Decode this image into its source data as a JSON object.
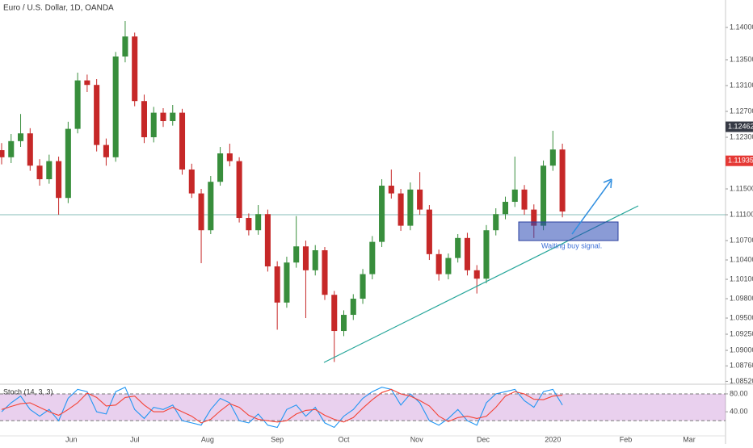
{
  "chart_data": [
    {
      "type": "candlestick",
      "title": "Euro / U.S. Dollar, 1D, OANDA",
      "x": [
        "2019-05-02",
        "2019-05-07",
        "2019-05-10",
        "2019-05-15",
        "2019-05-20",
        "2019-05-23",
        "2019-05-28",
        "2019-05-31",
        "2019-06-05",
        "2019-06-10",
        "2019-06-13",
        "2019-06-18",
        "2019-06-21",
        "2019-06-26",
        "2019-07-01",
        "2019-07-04",
        "2019-07-09",
        "2019-07-12",
        "2019-07-17",
        "2019-07-22",
        "2019-07-25",
        "2019-07-30",
        "2019-08-02",
        "2019-08-07",
        "2019-08-12",
        "2019-08-15",
        "2019-08-20",
        "2019-08-23",
        "2019-08-28",
        "2019-09-02",
        "2019-09-05",
        "2019-09-10",
        "2019-09-13",
        "2019-09-18",
        "2019-09-23",
        "2019-09-26",
        "2019-10-01",
        "2019-10-04",
        "2019-10-09",
        "2019-10-14",
        "2019-10-17",
        "2019-10-22",
        "2019-10-25",
        "2019-10-30",
        "2019-11-04",
        "2019-11-07",
        "2019-11-12",
        "2019-11-15",
        "2019-11-20",
        "2019-11-25",
        "2019-11-28",
        "2019-12-03",
        "2019-12-06",
        "2019-12-11",
        "2019-12-16",
        "2019-12-19",
        "2019-12-24",
        "2019-12-27",
        "2020-01-01",
        "2020-01-06"
      ],
      "open": [
        1.121,
        1.1199,
        1.1224,
        1.1236,
        1.1186,
        1.1165,
        1.1193,
        1.1136,
        1.1243,
        1.1318,
        1.1311,
        1.1218,
        1.1199,
        1.1355,
        1.1386,
        1.1286,
        1.123,
        1.1268,
        1.1255,
        1.1268,
        1.118,
        1.1143,
        1.1086,
        1.1161,
        1.1205,
        1.1193,
        1.1105,
        1.1086,
        1.1111,
        1.103,
        1.0974,
        1.1036,
        1.1061,
        1.1024,
        1.1055,
        1.0986,
        1.093,
        1.0955,
        1.098,
        1.1018,
        1.1068,
        1.1155,
        1.1143,
        1.1093,
        1.1149,
        1.1118,
        1.1049,
        1.1018,
        1.1043,
        1.1074,
        1.1024,
        1.1011,
        1.1086,
        1.1111,
        1.113,
        1.1149,
        1.1118,
        1.1093,
        1.1186,
        1.1211
      ],
      "high": [
        1.1221,
        1.1235,
        1.1266,
        1.1244,
        1.1196,
        1.1203,
        1.12,
        1.1254,
        1.133,
        1.1327,
        1.132,
        1.1228,
        1.1362,
        1.141,
        1.1392,
        1.1296,
        1.1277,
        1.1275,
        1.128,
        1.1274,
        1.1189,
        1.115,
        1.117,
        1.1215,
        1.122,
        1.1199,
        1.1112,
        1.1125,
        1.1118,
        1.1038,
        1.1045,
        1.1108,
        1.107,
        1.1063,
        1.106,
        1.0992,
        1.0962,
        1.0987,
        1.1026,
        1.1077,
        1.1165,
        1.118,
        1.115,
        1.116,
        1.1176,
        1.1125,
        1.1056,
        1.105,
        1.108,
        1.1082,
        1.1032,
        1.1094,
        1.112,
        1.1138,
        1.12,
        1.1156,
        1.1126,
        1.1194,
        1.124,
        1.122
      ],
      "low": [
        1.1188,
        1.119,
        1.1215,
        1.1178,
        1.1155,
        1.1158,
        1.111,
        1.1128,
        1.1236,
        1.13,
        1.1208,
        1.1186,
        1.1192,
        1.1346,
        1.1278,
        1.1221,
        1.1222,
        1.1246,
        1.1248,
        1.1172,
        1.1136,
        1.1035,
        1.108,
        1.1155,
        1.1185,
        1.1098,
        1.1078,
        1.1079,
        1.1022,
        1.0932,
        1.0966,
        1.1028,
        1.095,
        1.1016,
        1.0978,
        1.0882,
        1.0922,
        1.0947,
        1.0972,
        1.101,
        1.106,
        1.1135,
        1.1085,
        1.1086,
        1.111,
        1.104,
        1.1008,
        1.101,
        1.1036,
        1.1016,
        1.0988,
        1.1004,
        1.1078,
        1.1103,
        1.1122,
        1.111,
        1.1074,
        1.1086,
        1.1178,
        1.1106
      ],
      "close": [
        1.1199,
        1.1224,
        1.1236,
        1.1186,
        1.1165,
        1.1193,
        1.1136,
        1.1243,
        1.1318,
        1.1311,
        1.1218,
        1.1199,
        1.1355,
        1.1386,
        1.1286,
        1.123,
        1.1268,
        1.1255,
        1.1268,
        1.118,
        1.1143,
        1.1086,
        1.1161,
        1.1205,
        1.1193,
        1.1105,
        1.1086,
        1.1111,
        1.103,
        1.0974,
        1.1036,
        1.1061,
        1.1024,
        1.1055,
        1.0986,
        1.093,
        1.0955,
        1.098,
        1.1018,
        1.1068,
        1.1155,
        1.1143,
        1.1093,
        1.1149,
        1.1118,
        1.1049,
        1.1018,
        1.1043,
        1.1074,
        1.1024,
        1.1011,
        1.1086,
        1.1111,
        1.113,
        1.1149,
        1.1118,
        1.1093,
        1.1186,
        1.1211,
        1.1115
      ],
      "up_color": "#388e3c",
      "down_color": "#c62828",
      "xlim": [
        "2019-05-02",
        "2020-03-18"
      ],
      "xticks": [
        {
          "value": "2019-06-03",
          "label": "Jun"
        },
        {
          "value": "2019-07-01",
          "label": "Jul"
        },
        {
          "value": "2019-08-01",
          "label": "Aug"
        },
        {
          "value": "2019-09-02",
          "label": "Sep"
        },
        {
          "value": "2019-10-01",
          "label": "Oct"
        },
        {
          "value": "2019-11-01",
          "label": "Nov"
        },
        {
          "value": "2019-12-02",
          "label": "Dec"
        },
        {
          "value": "2020-01-01",
          "label": "2020"
        },
        {
          "value": "2020-02-03",
          "label": "Feb"
        },
        {
          "value": "2020-03-02",
          "label": "Mar"
        }
      ],
      "ylim": [
        1.08488,
        1.14425
      ],
      "yticks": [
        {
          "value": 1.14,
          "label": "1.14000"
        },
        {
          "value": 1.135,
          "label": "1.13500"
        },
        {
          "value": 1.131,
          "label": "1.13100"
        },
        {
          "value": 1.127,
          "label": "1.12700"
        },
        {
          "value": 1.123,
          "label": "1.12300"
        },
        {
          "value": 1.115,
          "label": "1.11500"
        },
        {
          "value": 1.111,
          "label": "1.11100"
        },
        {
          "value": 1.107,
          "label": "1.10700"
        },
        {
          "value": 1.104,
          "label": "1.10400"
        },
        {
          "value": 1.101,
          "label": "1.10100"
        },
        {
          "value": 1.098,
          "label": "1.09800"
        },
        {
          "value": 1.095,
          "label": "1.09500"
        },
        {
          "value": 1.0925,
          "label": "1.09250"
        },
        {
          "value": 1.09,
          "label": "1.09000"
        },
        {
          "value": 1.0876,
          "label": "1.08760"
        },
        {
          "value": 1.0852,
          "label": "1.08520"
        }
      ],
      "price_markers": [
        {
          "value": 1.12462,
          "color": "#363a45"
        },
        {
          "value": 1.11935,
          "color": "#e53935"
        }
      ],
      "annotation": "Waiting buy signal."
    },
    {
      "type": "line",
      "title": "Stoch (14, 3, 3)",
      "series": [
        {
          "color": "#2196f3",
          "values": [
            40,
            60,
            75,
            45,
            30,
            45,
            20,
            70,
            90,
            85,
            40,
            35,
            85,
            95,
            45,
            25,
            50,
            45,
            55,
            20,
            15,
            10,
            45,
            70,
            60,
            20,
            15,
            35,
            10,
            5,
            45,
            55,
            30,
            50,
            15,
            5,
            30,
            45,
            70,
            85,
            95,
            90,
            55,
            80,
            60,
            20,
            10,
            25,
            45,
            20,
            10,
            60,
            80,
            85,
            90,
            65,
            50,
            85,
            90,
            55
          ]
        },
        {
          "color": "#f44336",
          "values": [
            45,
            52,
            58,
            60,
            50,
            40,
            32,
            45,
            60,
            82,
            72,
            53,
            55,
            72,
            75,
            55,
            40,
            40,
            50,
            40,
            30,
            15,
            23,
            42,
            58,
            50,
            32,
            23,
            20,
            17,
            20,
            35,
            43,
            45,
            32,
            23,
            17,
            27,
            48,
            67,
            83,
            90,
            80,
            75,
            65,
            53,
            30,
            18,
            27,
            30,
            25,
            30,
            50,
            75,
            85,
            80,
            68,
            67,
            75,
            77
          ]
        }
      ],
      "ylim": [
        -14,
        98
      ],
      "yticks": [
        {
          "value": 80,
          "label": "80.00"
        },
        {
          "value": 40,
          "label": "40.00"
        }
      ],
      "band": [
        20,
        80
      ],
      "band_color": "#9c27b0"
    }
  ]
}
